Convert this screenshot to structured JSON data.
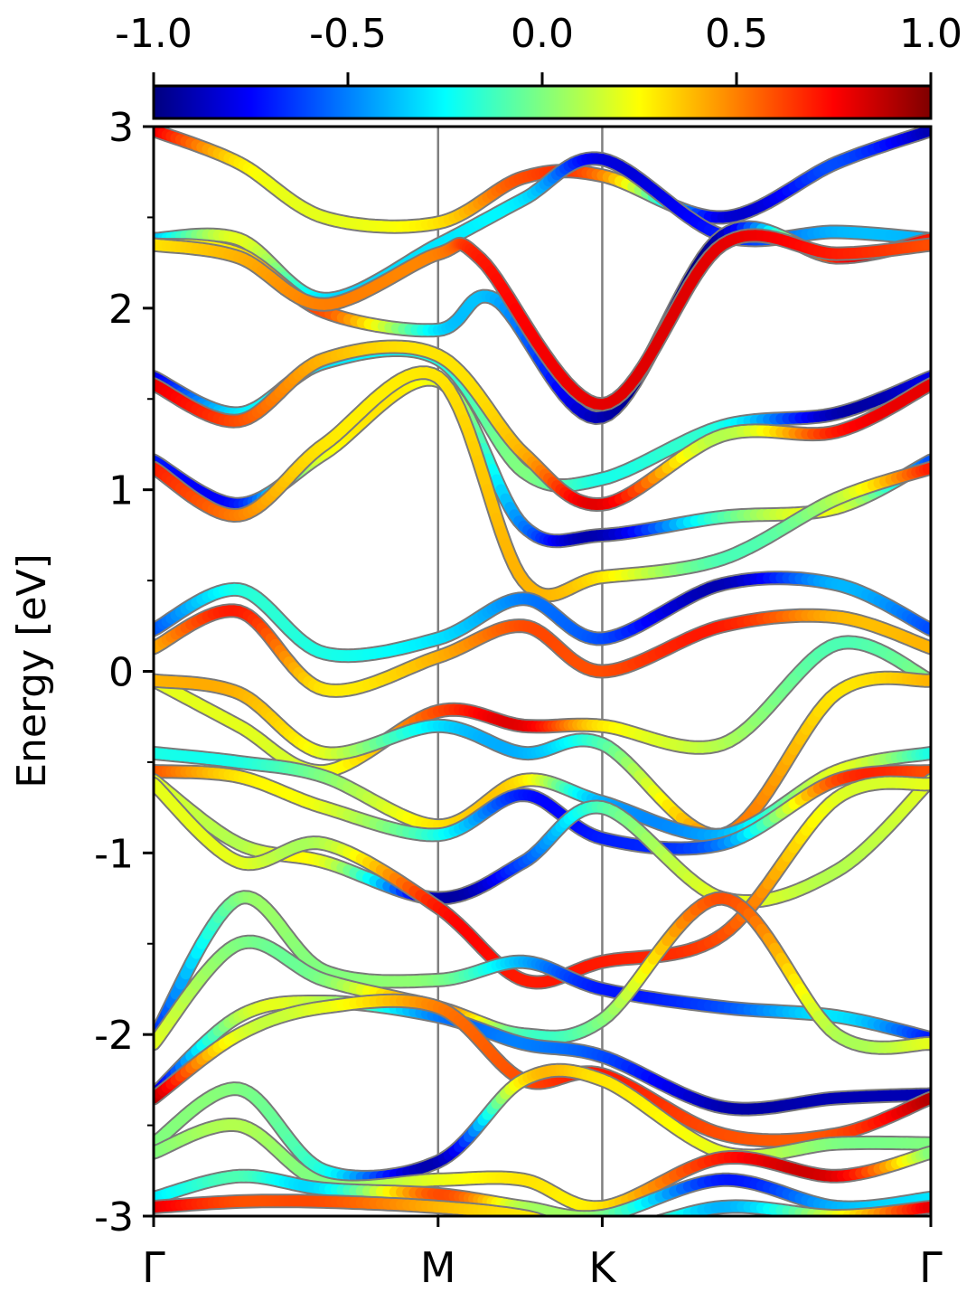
{
  "chart_data": {
    "type": "line",
    "subtype": "band-structure-with-projection-colormap",
    "title": "",
    "xlabel": "",
    "ylabel": "Energy [eV]",
    "ylim": [
      -3,
      3
    ],
    "yticks": [
      -3,
      -2,
      -1,
      0,
      1,
      2,
      3
    ],
    "y_minor_ticks": [
      -2.5,
      -1.5,
      -0.5,
      0.5,
      1.5,
      2.5
    ],
    "xlim": [
      0,
      2.732
    ],
    "kpath": [
      {
        "label": "Γ",
        "x": 0.0
      },
      {
        "label": "M",
        "x": 1.0
      },
      {
        "label": "K",
        "x": 1.577
      },
      {
        "label": "Γ",
        "x": 2.732
      }
    ],
    "colorbar": {
      "colormap": "jet",
      "range": [
        -1.0,
        1.0
      ],
      "tick_labels": [
        "-1.0",
        "-0.5",
        "0.0",
        "0.5",
        "1.0"
      ],
      "tick_values": [
        -1.0,
        -0.5,
        0.0,
        0.5,
        1.0
      ],
      "orientation": "horizontal",
      "placement": "top"
    },
    "bands": [
      {
        "x": [
          0,
          0.3,
          0.6,
          1.0,
          1.3,
          1.577,
          2.0,
          2.4,
          2.732
        ],
        "y": [
          2.98,
          2.8,
          2.5,
          2.47,
          2.72,
          2.73,
          2.5,
          2.8,
          2.98
        ],
        "c": [
          0.8,
          0.3,
          0.2,
          0.3,
          0.6,
          0.5,
          -0.8,
          -0.6,
          -0.9
        ]
      },
      {
        "x": [
          0,
          0.3,
          0.6,
          1.0,
          1.3,
          1.577,
          2.0,
          2.4,
          2.732
        ],
        "y": [
          2.38,
          2.38,
          2.05,
          2.35,
          2.6,
          2.82,
          2.4,
          2.42,
          2.38
        ],
        "c": [
          -0.4,
          0.2,
          -0.3,
          -0.3,
          -0.3,
          -0.8,
          -0.7,
          -0.4,
          -0.4
        ]
      },
      {
        "x": [
          0,
          0.3,
          0.6,
          1.0,
          1.2,
          1.577,
          2.0,
          2.4,
          2.732
        ],
        "y": [
          2.35,
          2.3,
          1.98,
          1.88,
          2.05,
          1.4,
          2.4,
          2.28,
          2.38
        ],
        "c": [
          0.3,
          0.3,
          0.6,
          -0.3,
          -0.4,
          -0.9,
          -0.9,
          0.7,
          0.7
        ]
      },
      {
        "x": [
          0,
          0.3,
          0.6,
          1.0,
          1.15,
          1.577,
          2.0,
          2.4,
          2.732
        ],
        "y": [
          2.35,
          2.28,
          2.02,
          2.3,
          2.27,
          1.47,
          2.35,
          2.3,
          2.35
        ],
        "c": [
          0.3,
          0.4,
          0.5,
          0.5,
          0.7,
          0.8,
          0.8,
          0.7,
          0.6
        ]
      },
      {
        "x": [
          0,
          0.3,
          0.6,
          1.0,
          1.3,
          1.577,
          2.0,
          2.4,
          2.732
        ],
        "y": [
          1.62,
          1.42,
          1.7,
          1.72,
          1.1,
          1.06,
          1.35,
          1.42,
          1.62
        ],
        "c": [
          -0.8,
          -0.3,
          -0.3,
          -0.2,
          0.0,
          -0.2,
          -0.2,
          -0.9,
          -0.8
        ]
      },
      {
        "x": [
          0,
          0.3,
          0.6,
          1.0,
          1.3,
          1.577,
          2.0,
          2.4,
          2.732
        ],
        "y": [
          1.58,
          1.38,
          1.72,
          1.74,
          1.2,
          0.92,
          1.3,
          1.32,
          1.58
        ],
        "c": [
          0.8,
          0.6,
          0.4,
          0.3,
          0.4,
          0.8,
          0.1,
          0.7,
          0.8
        ]
      },
      {
        "x": [
          0,
          0.3,
          0.6,
          1.0,
          1.3,
          1.577,
          2.0,
          2.4,
          2.732
        ],
        "y": [
          1.16,
          0.92,
          1.2,
          1.6,
          0.8,
          0.75,
          0.85,
          0.9,
          1.16
        ],
        "c": [
          -0.7,
          -0.7,
          0.2,
          0.2,
          -0.5,
          -0.9,
          -0.1,
          0.2,
          -0.6
        ]
      },
      {
        "x": [
          0,
          0.3,
          0.6,
          1.0,
          1.3,
          1.577,
          2.0,
          2.4,
          2.732
        ],
        "y": [
          1.12,
          0.86,
          1.25,
          1.62,
          0.5,
          0.52,
          0.62,
          0.95,
          1.12
        ],
        "c": [
          0.7,
          0.5,
          0.3,
          0.3,
          0.4,
          0.3,
          -0.1,
          0.1,
          0.7
        ]
      },
      {
        "x": [
          0,
          0.3,
          0.6,
          1.0,
          1.3,
          1.577,
          2.0,
          2.4,
          2.732
        ],
        "y": [
          0.23,
          0.45,
          0.1,
          0.18,
          0.4,
          0.18,
          0.48,
          0.48,
          0.23
        ],
        "c": [
          -0.6,
          -0.2,
          -0.2,
          -0.3,
          -0.5,
          -0.6,
          -0.9,
          -0.4,
          -0.6
        ]
      },
      {
        "x": [
          0,
          0.3,
          0.6,
          1.0,
          1.3,
          1.577,
          2.0,
          2.4,
          2.732
        ],
        "y": [
          0.13,
          0.33,
          -0.1,
          0.08,
          0.25,
          0.0,
          0.25,
          0.3,
          0.13
        ],
        "c": [
          0.4,
          0.7,
          0.3,
          0.4,
          0.6,
          0.6,
          0.7,
          0.4,
          0.4
        ]
      },
      {
        "x": [
          0,
          0.3,
          0.6,
          1.0,
          1.3,
          1.577,
          2.0,
          2.4,
          2.732
        ],
        "y": [
          -0.05,
          -0.3,
          -0.55,
          -0.22,
          -0.3,
          -0.3,
          -0.4,
          0.15,
          -0.05
        ],
        "c": [
          0.2,
          0.2,
          0.2,
          0.6,
          0.8,
          0.3,
          0.1,
          -0.1,
          0.0
        ]
      },
      {
        "x": [
          0,
          0.3,
          0.6,
          1.0,
          1.3,
          1.577,
          2.0,
          2.4,
          2.732
        ],
        "y": [
          -0.05,
          -0.12,
          -0.45,
          -0.3,
          -0.45,
          -0.4,
          -0.9,
          -0.12,
          -0.05
        ],
        "c": [
          0.4,
          0.4,
          0.2,
          -0.3,
          -0.4,
          -0.1,
          0.5,
          0.3,
          0.4
        ]
      },
      {
        "x": [
          0,
          0.3,
          0.6,
          1.0,
          1.3,
          1.577,
          2.0,
          2.4,
          2.732
        ],
        "y": [
          -0.45,
          -0.5,
          -0.58,
          -0.85,
          -0.6,
          -0.72,
          -0.9,
          -0.55,
          -0.45
        ],
        "c": [
          -0.2,
          -0.2,
          0.0,
          0.3,
          0.3,
          -0.4,
          -0.4,
          0.2,
          -0.2
        ]
      },
      {
        "x": [
          0,
          0.3,
          0.6,
          1.0,
          1.3,
          1.577,
          2.0,
          2.4,
          2.732
        ],
        "y": [
          -0.55,
          -0.58,
          -0.75,
          -0.9,
          -0.68,
          -0.92,
          -0.95,
          -0.6,
          -0.55
        ],
        "c": [
          0.6,
          0.3,
          0.2,
          -0.2,
          -0.7,
          -0.7,
          -0.5,
          0.6,
          0.6
        ]
      },
      {
        "x": [
          0,
          0.3,
          0.6,
          1.0,
          1.3,
          1.577,
          2.0,
          2.4,
          2.732
        ],
        "y": [
          -0.6,
          -0.95,
          -1.05,
          -1.25,
          -1.05,
          -0.75,
          -1.25,
          -1.1,
          -0.6
        ],
        "c": [
          0.2,
          0.1,
          0.2,
          -0.9,
          -0.6,
          -0.1,
          0.2,
          0.1,
          0.2
        ]
      },
      {
        "x": [
          0,
          0.3,
          0.6,
          1.0,
          1.3,
          1.577,
          2.0,
          2.4,
          2.732
        ],
        "y": [
          -0.62,
          -1.05,
          -0.95,
          -1.3,
          -1.7,
          -1.6,
          -1.45,
          -0.7,
          -0.62
        ],
        "c": [
          0.2,
          0.2,
          0.1,
          0.7,
          0.7,
          0.7,
          0.6,
          0.2,
          0.2
        ]
      },
      {
        "x": [
          0,
          0.3,
          0.6,
          1.0,
          1.3,
          1.577,
          2.0,
          2.4,
          2.732
        ],
        "y": [
          -2.02,
          -1.25,
          -1.65,
          -1.7,
          -1.6,
          -1.75,
          -1.85,
          -1.9,
          -2.02
        ],
        "c": [
          -0.7,
          0.0,
          0.0,
          0.0,
          -0.4,
          -0.7,
          -0.6,
          -0.3,
          -0.7
        ]
      },
      {
        "x": [
          0,
          0.3,
          0.6,
          1.0,
          1.3,
          1.577,
          2.0,
          2.4,
          2.732
        ],
        "y": [
          -2.05,
          -1.5,
          -1.7,
          -1.85,
          -2.0,
          -1.92,
          -1.25,
          -2.0,
          -2.05
        ],
        "c": [
          0.2,
          0.0,
          0.0,
          0.5,
          -0.1,
          0.0,
          0.6,
          0.1,
          0.2
        ]
      },
      {
        "x": [
          0,
          0.3,
          0.6,
          1.0,
          1.3,
          1.577,
          2.0,
          2.4,
          2.732
        ],
        "y": [
          -2.33,
          -1.9,
          -1.82,
          -1.9,
          -2.05,
          -2.12,
          -2.4,
          -2.35,
          -2.33
        ],
        "c": [
          -0.9,
          0.1,
          0.1,
          -0.5,
          -0.5,
          -0.6,
          -0.9,
          -0.9,
          -0.9
        ]
      },
      {
        "x": [
          0,
          0.3,
          0.6,
          1.0,
          1.3,
          1.577,
          2.0,
          2.4,
          2.732
        ],
        "y": [
          -2.35,
          -2.0,
          -1.85,
          -1.85,
          -2.25,
          -2.22,
          -2.55,
          -2.55,
          -2.35
        ],
        "c": [
          0.9,
          0.2,
          0.2,
          0.5,
          0.6,
          0.7,
          0.6,
          0.6,
          0.9
        ]
      },
      {
        "x": [
          0,
          0.3,
          0.6,
          1.0,
          1.3,
          1.577,
          2.0,
          2.4,
          2.732
        ],
        "y": [
          -2.6,
          -2.3,
          -2.75,
          -2.7,
          -2.25,
          -2.25,
          -2.65,
          -2.6,
          -2.6
        ],
        "c": [
          0.0,
          0.0,
          -0.2,
          -0.9,
          0.3,
          0.3,
          0.2,
          0.0,
          0.0
        ]
      },
      {
        "x": [
          0,
          0.3,
          0.6,
          1.0,
          1.3,
          1.577,
          2.0,
          2.4,
          2.732
        ],
        "y": [
          -2.65,
          -2.5,
          -2.82,
          -2.8,
          -2.8,
          -2.95,
          -2.68,
          -2.78,
          -2.65
        ],
        "c": [
          0.0,
          0.1,
          0.0,
          0.2,
          0.3,
          0.3,
          0.7,
          0.8,
          0.0
        ]
      },
      {
        "x": [
          0,
          0.3,
          0.6,
          1.0,
          1.3,
          1.577,
          2.0,
          2.4,
          2.732
        ],
        "y": [
          -2.9,
          -2.78,
          -2.85,
          -2.88,
          -2.95,
          -3.0,
          -2.8,
          -2.95,
          -2.9
        ],
        "c": [
          -0.3,
          -0.1,
          -0.3,
          0.6,
          0.1,
          0.0,
          -0.7,
          -0.4,
          -0.3
        ]
      },
      {
        "x": [
          0,
          0.3,
          0.6,
          1.0,
          1.3,
          1.577,
          2.0,
          2.4,
          2.732
        ],
        "y": [
          -2.95,
          -2.92,
          -2.92,
          -2.95,
          -3.0,
          -3.1,
          -2.95,
          -3.0,
          -2.95
        ],
        "c": [
          0.8,
          0.6,
          0.6,
          0.4,
          0.3,
          0.3,
          -0.4,
          0.2,
          0.8
        ]
      }
    ]
  }
}
